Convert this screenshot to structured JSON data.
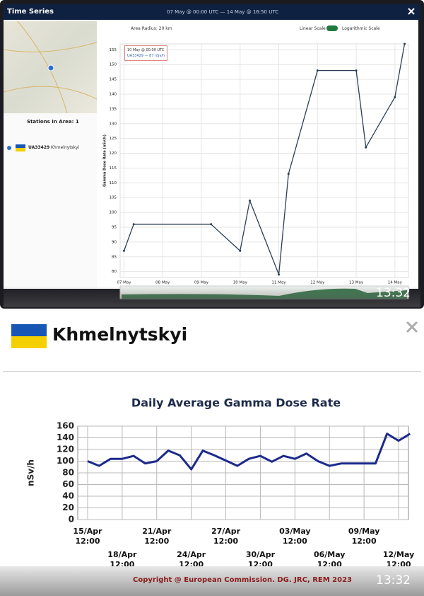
{
  "top_panel": {
    "header": {
      "title": "Time Series",
      "range": "07 May @ 00:00 UTC — 14 May @ 16:50 UTC"
    },
    "stations_title": "Stations In Area: 1",
    "station": {
      "id": "UA33429",
      "name": "Khmelnytskyi"
    },
    "toolbar": {
      "radius": "Area Radius: 20 km",
      "linear": "Linear Scale",
      "log": "Logarithmic Scale"
    },
    "tooltip": {
      "time": "10 May @ 00:00 UTC",
      "value": "UA33429 — 87 nSv/h"
    },
    "timestamp": "13:32"
  },
  "bottom_panel": {
    "station_name": "Khmelnytskyi",
    "copyright": "Copyright @ European Commission. DG. JRC, REM 2023",
    "timestamp": "13:32"
  },
  "chart_data": [
    {
      "type": "line",
      "y_label": "Gamma Dose Rate (nSv/h)",
      "x": [
        0,
        0.25,
        2.25,
        3,
        3.25,
        4,
        4.25,
        5,
        6,
        6.25,
        7,
        7.25
      ],
      "values": [
        87,
        96,
        96,
        87,
        104,
        79,
        113,
        148,
        148,
        122,
        139,
        157
      ],
      "color": "#2b3f55",
      "xlim": [
        -0.1,
        7.35
      ],
      "ylim": [
        78,
        157
      ],
      "xticks": [
        {
          "value": 0,
          "label": "07 May"
        },
        {
          "value": 1,
          "label": "08 May"
        },
        {
          "value": 2,
          "label": "09 May"
        },
        {
          "value": 3,
          "label": "10 May"
        },
        {
          "value": 4,
          "label": "11 May"
        },
        {
          "value": 5,
          "label": "12 May"
        },
        {
          "value": 6,
          "label": "13 May"
        },
        {
          "value": 7,
          "label": "14 May"
        }
      ],
      "yticks": [
        80,
        85,
        90,
        95,
        100,
        105,
        110,
        115,
        120,
        125,
        130,
        135,
        140,
        145,
        150,
        155
      ],
      "grid": true
    },
    {
      "type": "line",
      "title": "Daily Average Gamma Dose Rate",
      "y_label": "nSv/h",
      "categories": [
        "15/Apr\n12:00",
        null,
        null,
        "18/Apr\n12:00",
        null,
        null,
        "21/Apr\n12:00",
        null,
        null,
        "24/Apr\n12:00",
        null,
        null,
        "27/Apr\n12:00",
        null,
        null,
        "30/Apr\n12:00",
        null,
        null,
        "03/May\n12:00",
        null,
        null,
        "06/May\n12:00",
        null,
        null,
        "09/May\n12:00",
        null,
        null,
        "12/May\n12:00",
        null
      ],
      "values": [
        100,
        92,
        104,
        104,
        109,
        96,
        100,
        118,
        110,
        86,
        118,
        110,
        101,
        92,
        104,
        109,
        99,
        109,
        104,
        113,
        100,
        92,
        96,
        96,
        96,
        96,
        147,
        135,
        147
      ],
      "color": "#1c2a8c",
      "ylim": [
        0,
        160
      ],
      "yticks": [
        0,
        20,
        40,
        60,
        80,
        100,
        120,
        140,
        160
      ],
      "grid": true
    }
  ]
}
